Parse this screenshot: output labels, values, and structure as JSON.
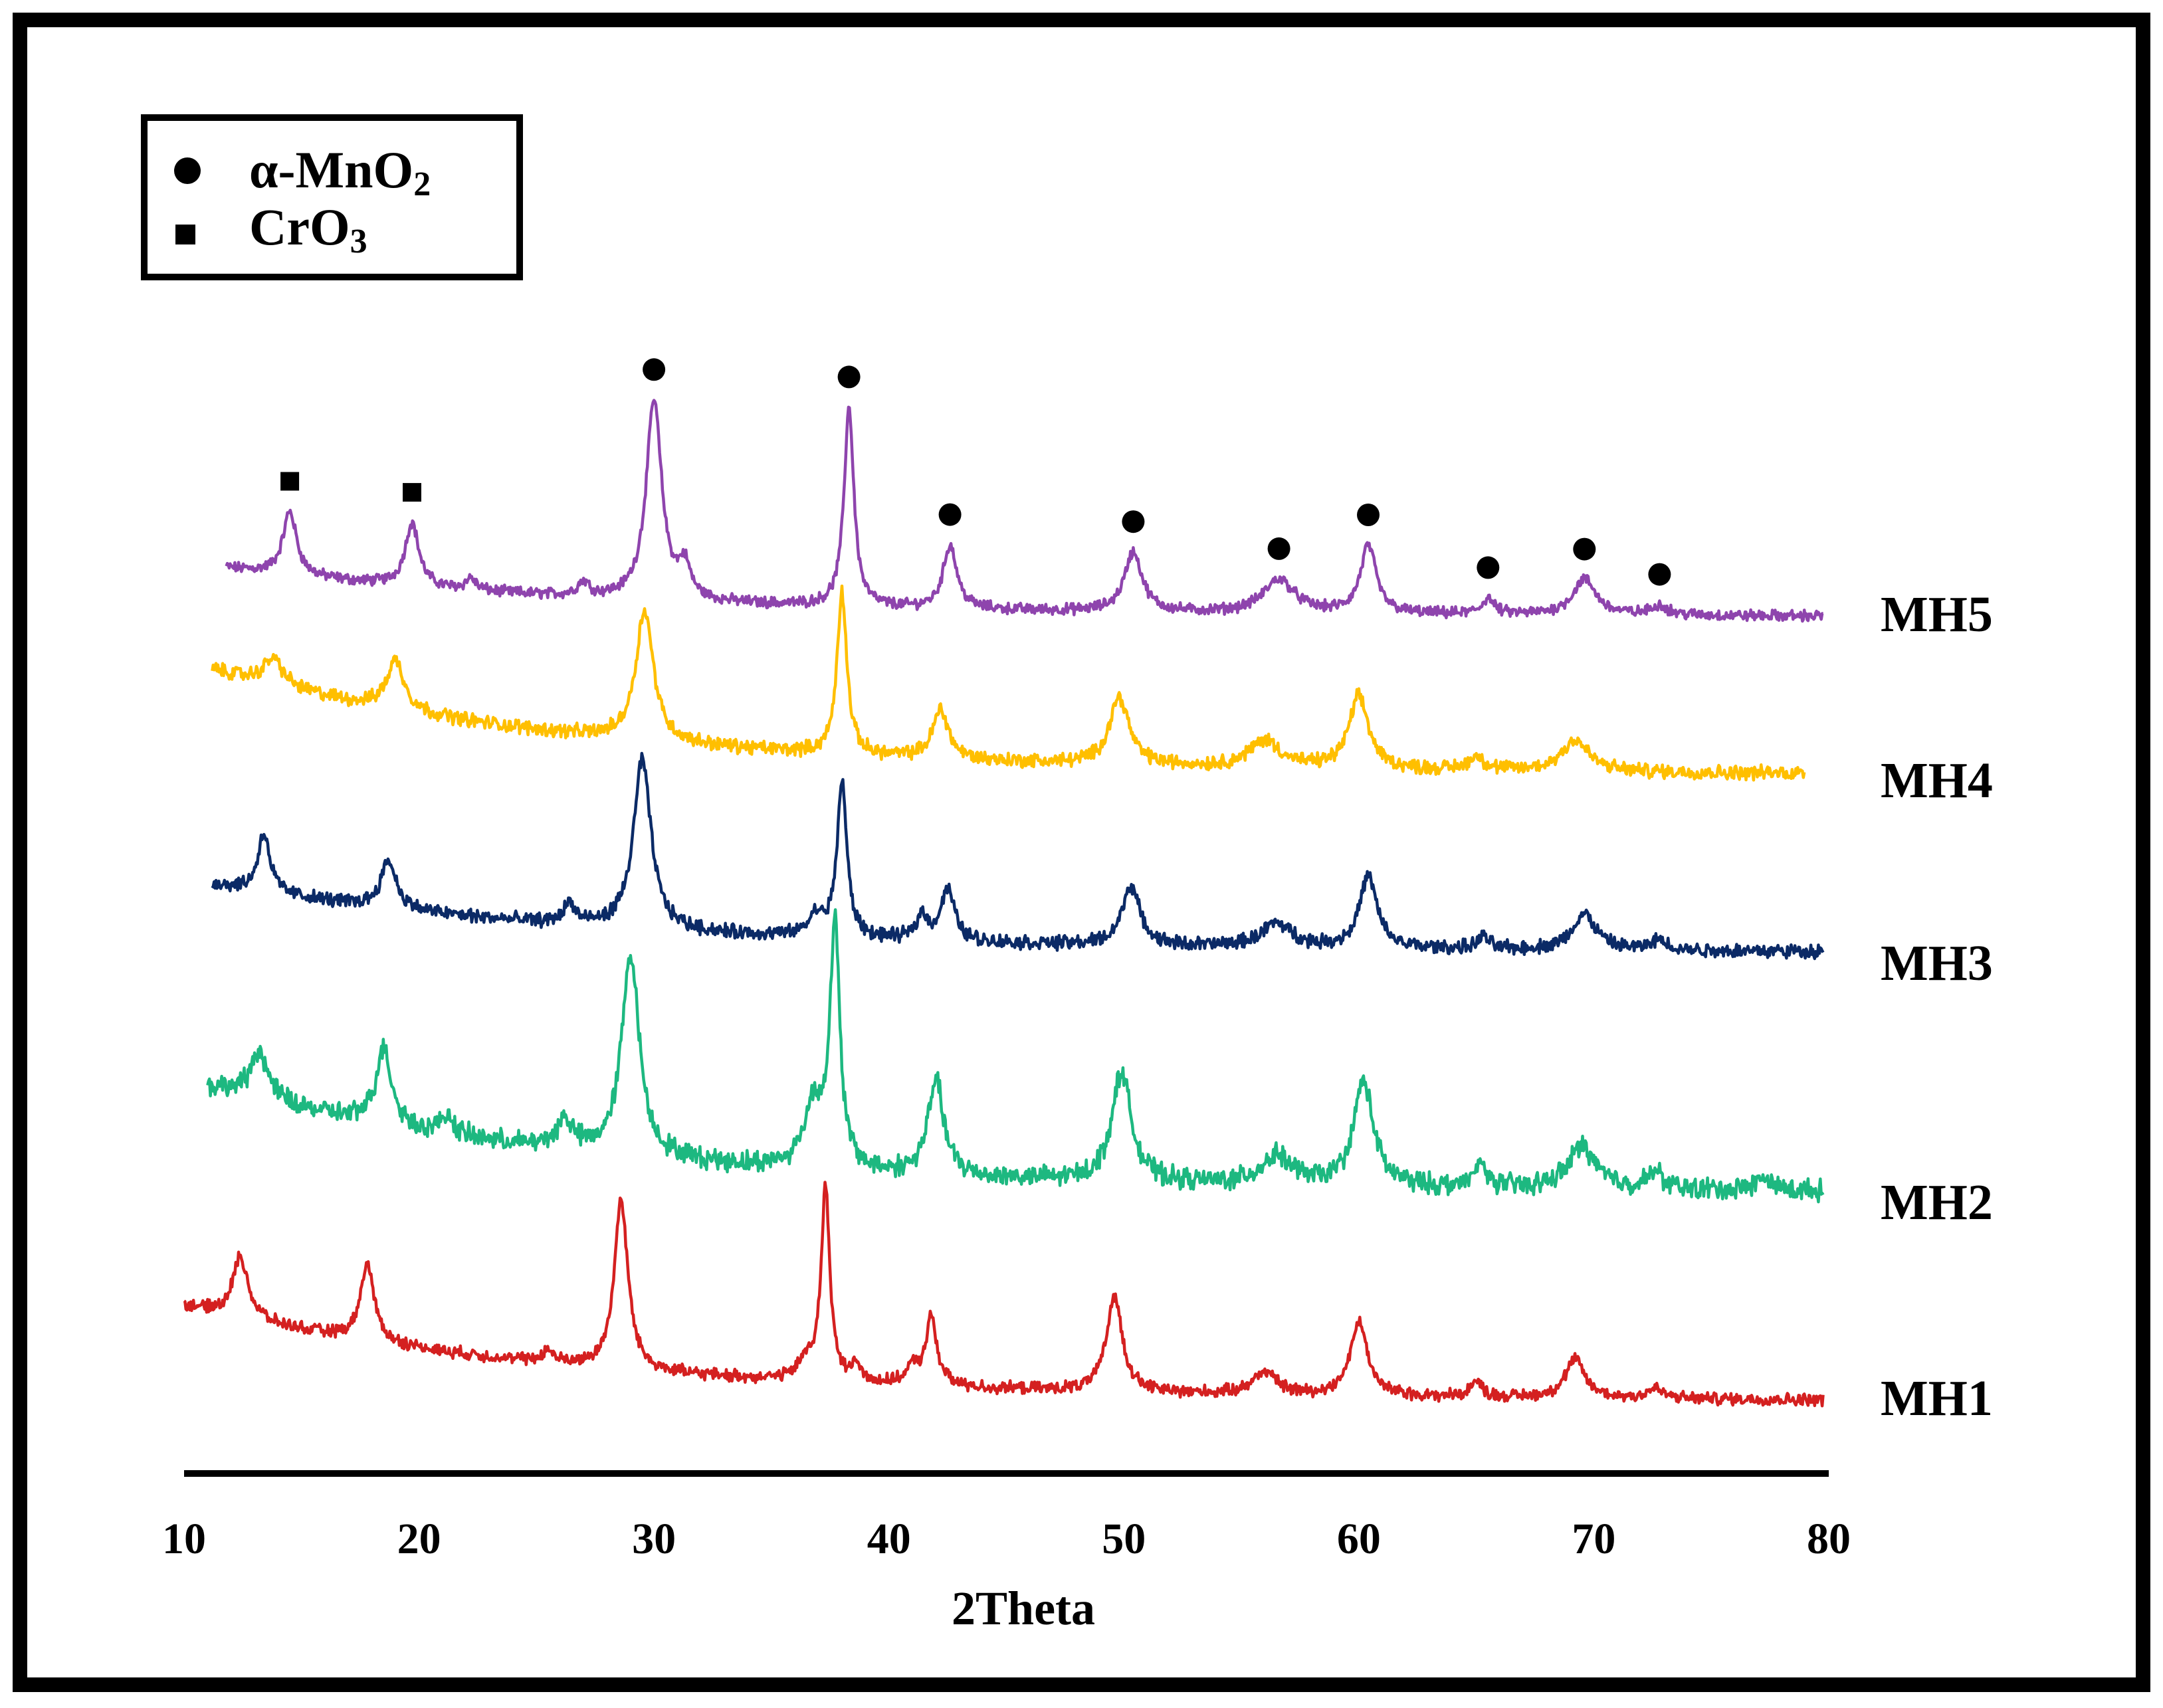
{
  "chart_data": {
    "type": "line",
    "title": "",
    "xlabel": "2Theta",
    "ylabel": "",
    "xlim": [
      10,
      80
    ],
    "x_ticks": [
      "10",
      "20",
      "30",
      "40",
      "50",
      "60",
      "70",
      "80"
    ],
    "legend": {
      "placement": "top-left",
      "entries": [
        {
          "marker": "circle",
          "label_main": "α-MnO",
          "label_sub": "2"
        },
        {
          "marker": "square",
          "label_main": "CrO",
          "label_sub": "3"
        }
      ]
    },
    "series": [
      {
        "name": "MH5",
        "color": "#8e44ad",
        "x_start": 11.8,
        "x_end": 79.8,
        "start_rel": 0.3,
        "baseline_rel": 0.055,
        "noise": 0.022,
        "peaks": [
          [
            14.5,
            0.32,
            0.35
          ],
          [
            19.7,
            0.32,
            0.35
          ],
          [
            22.2,
            0.06,
            0.25
          ],
          [
            27.0,
            0.07,
            0.3
          ],
          [
            30.0,
            1.0,
            0.4
          ],
          [
            31.3,
            0.16,
            0.3
          ],
          [
            38.3,
            1.0,
            0.25
          ],
          [
            42.6,
            0.32,
            0.35
          ],
          [
            50.4,
            0.3,
            0.45
          ],
          [
            56.6,
            0.17,
            0.8
          ],
          [
            60.4,
            0.34,
            0.4
          ],
          [
            65.5,
            0.08,
            0.3
          ],
          [
            69.6,
            0.18,
            0.6
          ],
          [
            72.8,
            0.05,
            0.4
          ]
        ]
      },
      {
        "name": "MH4",
        "color": "#ffbf00",
        "x_start": 11.2,
        "x_end": 79.0,
        "start_rel": 0.52,
        "baseline_rel": 0.055,
        "noise": 0.025,
        "peaks": [
          [
            13.8,
            0.12,
            0.5
          ],
          [
            19.0,
            0.22,
            0.45
          ],
          [
            29.6,
            0.58,
            0.45
          ],
          [
            38.0,
            0.72,
            0.25
          ],
          [
            42.2,
            0.22,
            0.4
          ],
          [
            49.8,
            0.3,
            0.5
          ],
          [
            56.0,
            0.12,
            0.8
          ],
          [
            60.0,
            0.32,
            0.5
          ],
          [
            65.0,
            0.06,
            0.4
          ],
          [
            69.2,
            0.14,
            0.7
          ]
        ]
      },
      {
        "name": "MH3",
        "color": "#0b2a66",
        "x_start": 11.2,
        "x_end": 79.8,
        "start_rel": 0.4,
        "baseline_rel": 0.055,
        "noise": 0.028,
        "peaks": [
          [
            13.4,
            0.3,
            0.3
          ],
          [
            18.7,
            0.24,
            0.4
          ],
          [
            26.4,
            0.1,
            0.3
          ],
          [
            29.5,
            0.85,
            0.45
          ],
          [
            36.9,
            0.1,
            0.4
          ],
          [
            38.0,
            0.78,
            0.25
          ],
          [
            41.4,
            0.12,
            0.3
          ],
          [
            42.5,
            0.26,
            0.35
          ],
          [
            50.3,
            0.3,
            0.45
          ],
          [
            56.5,
            0.12,
            0.8
          ],
          [
            60.4,
            0.36,
            0.45
          ],
          [
            65.3,
            0.06,
            0.3
          ],
          [
            69.6,
            0.18,
            0.6
          ],
          [
            72.8,
            0.05,
            0.4
          ]
        ]
      },
      {
        "name": "MH2",
        "color": "#1db880",
        "x_start": 11.0,
        "x_end": 79.8,
        "start_rel": 0.5,
        "baseline_rel": 0.055,
        "noise": 0.035,
        "peaks": [
          [
            13.2,
            0.2,
            0.45
          ],
          [
            18.5,
            0.32,
            0.4
          ],
          [
            21.2,
            0.08,
            0.3
          ],
          [
            26.2,
            0.12,
            0.4
          ],
          [
            29.0,
            0.85,
            0.45
          ],
          [
            36.8,
            0.26,
            0.5
          ],
          [
            37.7,
            1.0,
            0.25
          ],
          [
            42.0,
            0.4,
            0.4
          ],
          [
            49.9,
            0.46,
            0.5
          ],
          [
            56.5,
            0.12,
            0.8
          ],
          [
            60.2,
            0.44,
            0.5
          ],
          [
            65.2,
            0.1,
            0.3
          ],
          [
            69.5,
            0.18,
            0.7
          ],
          [
            72.6,
            0.07,
            0.4
          ],
          [
            77.2,
            0.05,
            0.4
          ]
        ]
      },
      {
        "name": "MH1",
        "color": "#d42020",
        "x_start": 10.0,
        "x_end": 79.8,
        "start_rel": 0.55,
        "baseline_rel": 0.055,
        "noise": 0.025,
        "peaks": [
          [
            12.4,
            0.32,
            0.4
          ],
          [
            17.8,
            0.4,
            0.35
          ],
          [
            25.5,
            0.06,
            0.3
          ],
          [
            28.6,
            0.88,
            0.35
          ],
          [
            36.5,
            0.1,
            0.4
          ],
          [
            37.3,
            1.0,
            0.22
          ],
          [
            38.6,
            0.08,
            0.3
          ],
          [
            41.0,
            0.08,
            0.3
          ],
          [
            41.8,
            0.35,
            0.3
          ],
          [
            49.6,
            0.5,
            0.4
          ],
          [
            56.0,
            0.12,
            0.6
          ],
          [
            60.0,
            0.38,
            0.45
          ],
          [
            65.0,
            0.08,
            0.3
          ],
          [
            69.2,
            0.2,
            0.5
          ],
          [
            72.6,
            0.05,
            0.4
          ]
        ]
      }
    ],
    "annotations": [
      {
        "series": "MH5",
        "marker": "square",
        "x": 14.5,
        "rel": 0.32
      },
      {
        "series": "MH5",
        "marker": "square",
        "x": 19.7,
        "rel": 0.32
      },
      {
        "series": "MH5",
        "marker": "circle",
        "x": 30.0,
        "rel": 1.0
      },
      {
        "series": "MH5",
        "marker": "circle",
        "x": 38.3,
        "rel": 1.0
      },
      {
        "series": "MH5",
        "marker": "circle",
        "x": 42.6,
        "rel": 0.32
      },
      {
        "series": "MH5",
        "marker": "circle",
        "x": 50.4,
        "rel": 0.3
      },
      {
        "series": "MH5",
        "marker": "circle",
        "x": 56.6,
        "rel": 0.17
      },
      {
        "series": "MH5",
        "marker": "circle",
        "x": 60.4,
        "rel": 0.34
      },
      {
        "series": "MH5",
        "marker": "circle",
        "x": 65.5,
        "rel": 0.08
      },
      {
        "series": "MH5",
        "marker": "circle",
        "x": 69.6,
        "rel": 0.18
      },
      {
        "series": "MH5",
        "marker": "circle",
        "x": 72.8,
        "rel": 0.05
      }
    ]
  }
}
